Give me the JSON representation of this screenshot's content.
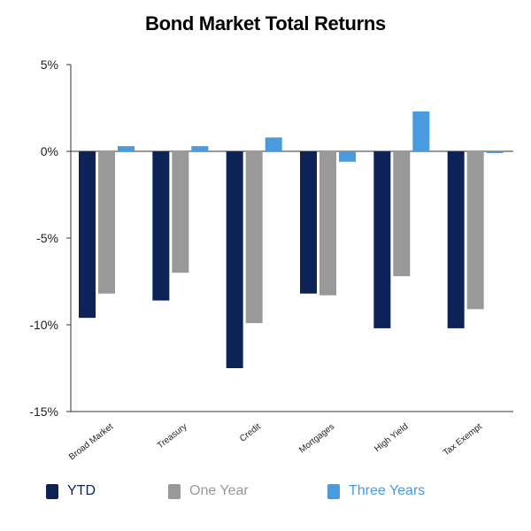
{
  "chart_data": {
    "type": "bar",
    "title": "Bond Market Total Returns",
    "xlabel": "",
    "ylabel": "",
    "categories": [
      "Broad Market",
      "Treasury",
      "Credit",
      "Mortgages",
      "High Yield",
      "Tax Exempt"
    ],
    "series": [
      {
        "name": "YTD",
        "values": [
          -9.6,
          -8.6,
          -12.5,
          -8.2,
          -10.2,
          -10.2
        ],
        "color": "#0d2257"
      },
      {
        "name": "One Year",
        "values": [
          -8.2,
          -7.0,
          -9.9,
          -8.3,
          -7.2,
          -9.1
        ],
        "color": "#999999"
      },
      {
        "name": "Three Years",
        "values": [
          0.3,
          0.3,
          0.8,
          -0.6,
          2.3,
          -0.1
        ],
        "color": "#4a9ae0"
      }
    ],
    "ylim": [
      -15,
      5
    ],
    "yticks": [
      5,
      0,
      -5,
      -10,
      -15
    ],
    "ytick_labels": [
      "5%",
      "0%",
      "-5%",
      "-10%",
      "-15%"
    ],
    "grid": false,
    "legend_position": "bottom"
  }
}
